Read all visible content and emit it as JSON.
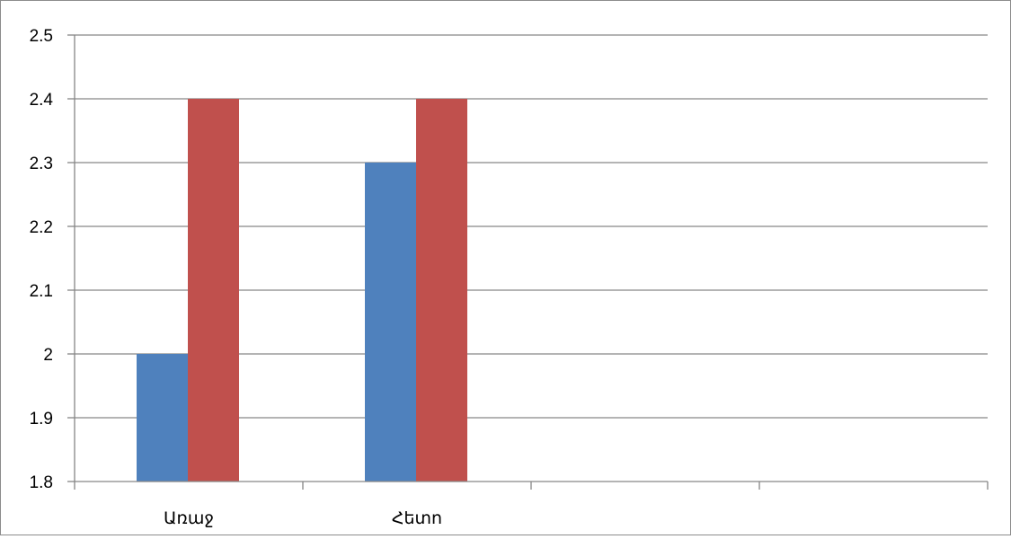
{
  "chart_data": {
    "type": "bar",
    "title": "",
    "xlabel": "",
    "ylabel": "",
    "categories": [
      "Առաջ",
      "Հետո"
    ],
    "series": [
      {
        "color": "#4F81BD",
        "values": [
          2.0,
          2.3
        ]
      },
      {
        "color": "#C0504D",
        "values": [
          2.4,
          2.4
        ]
      }
    ],
    "ylim": [
      1.8,
      2.5
    ],
    "yticks": [
      "1.8",
      "1.9",
      "2",
      "2.1",
      "2.2",
      "2.3",
      "2.4",
      "2.5"
    ],
    "x_slots": 4,
    "grid": true,
    "legend": "none",
    "colors": {
      "grid": "#868686",
      "axis": "#868686",
      "frame": "#8c8c8c"
    }
  }
}
